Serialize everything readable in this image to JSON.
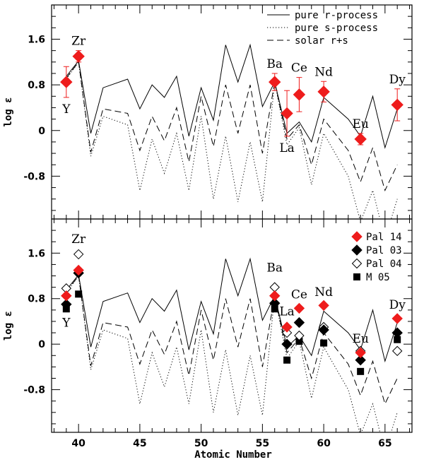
{
  "chart_data": [
    {
      "type": "line",
      "panel": "top",
      "xlabel": "",
      "ylabel": "log ε",
      "xlim": [
        37.8,
        67.2
      ],
      "ylim": [
        -1.55,
        2.2
      ],
      "x_ticks": [
        40,
        45,
        50,
        55,
        60,
        65
      ],
      "y_ticks": [
        -0.8,
        0,
        0.8,
        1.6
      ],
      "y_tick_labels": [
        "-0.8",
        "0",
        "0.8",
        "1.6"
      ],
      "legend": {
        "position": "top-right",
        "entries": [
          {
            "label": "pure r-process",
            "style": "solid"
          },
          {
            "label": "pure s-process",
            "style": "dotted"
          },
          {
            "label": "solar r+s",
            "style": "dashed"
          }
        ]
      },
      "curves": [
        {
          "name": "pure r-process",
          "style": "solid",
          "x": [
            39,
            40,
            41,
            42,
            44,
            45,
            46,
            47,
            48,
            49,
            50,
            51,
            52,
            53,
            54,
            55,
            56,
            57,
            58,
            59,
            60,
            62,
            63,
            64,
            65,
            66
          ],
          "y": [
            0.95,
            1.22,
            -0.05,
            0.75,
            0.9,
            0.38,
            0.8,
            0.58,
            0.95,
            -0.1,
            0.75,
            0.18,
            1.5,
            0.85,
            1.5,
            0.42,
            0.85,
            -0.05,
            0.15,
            -0.2,
            0.58,
            0.2,
            -0.1,
            0.6,
            -0.3,
            0.38
          ]
        },
        {
          "name": "pure s-process",
          "style": "dotted",
          "x": [
            39,
            40,
            41,
            42,
            44,
            45,
            46,
            47,
            48,
            49,
            50,
            51,
            52,
            53,
            54,
            55,
            56,
            57,
            58,
            59,
            60,
            62,
            63,
            64,
            65,
            66
          ],
          "y": [
            0.9,
            1.2,
            -0.45,
            0.25,
            0.1,
            -1.05,
            -0.15,
            -0.75,
            -0.05,
            -1.05,
            0.25,
            -1.2,
            -0.1,
            -1.25,
            -0.2,
            -1.25,
            0.85,
            -0.25,
            0.05,
            -0.95,
            -0.05,
            -0.8,
            -1.6,
            -1.05,
            -1.9,
            -1.2
          ]
        },
        {
          "name": "solar r+s",
          "style": "dashed",
          "x": [
            39,
            40,
            41,
            42,
            44,
            45,
            46,
            47,
            48,
            49,
            50,
            51,
            52,
            53,
            54,
            55,
            56,
            57,
            58,
            59,
            60,
            62,
            63,
            64,
            65,
            66
          ],
          "y": [
            0.92,
            1.2,
            -0.38,
            0.38,
            0.3,
            -0.35,
            0.25,
            -0.18,
            0.4,
            -0.55,
            0.6,
            -0.28,
            0.8,
            -0.05,
            0.8,
            -0.4,
            0.85,
            -0.15,
            0.1,
            -0.6,
            0.2,
            -0.35,
            -0.9,
            -0.3,
            -1.05,
            -0.6
          ]
        }
      ],
      "points": [
        {
          "element": "Y",
          "x": 39,
          "y": 0.85,
          "err": 0.27,
          "label_pos": "below"
        },
        {
          "element": "Zr",
          "x": 40,
          "y": 1.3,
          "err": 0.1,
          "label_pos": "above"
        },
        {
          "element": "Ba",
          "x": 56,
          "y": 0.85,
          "err": 0.15,
          "label_pos": "above"
        },
        {
          "element": "La",
          "x": 57,
          "y": 0.3,
          "err": 0.4,
          "label_pos": "below"
        },
        {
          "element": "Ce",
          "x": 58,
          "y": 0.63,
          "err": 0.3,
          "label_pos": "above"
        },
        {
          "element": "Nd",
          "x": 60,
          "y": 0.68,
          "err": 0.18,
          "label_pos": "above"
        },
        {
          "element": "Eu",
          "x": 63,
          "y": -0.15,
          "err": 0.1,
          "label_pos": "above"
        },
        {
          "element": "Dy",
          "x": 66,
          "y": 0.45,
          "err": 0.28,
          "label_pos": "above"
        }
      ],
      "point_series": "Pal 14",
      "point_color": "#ee1c1c"
    },
    {
      "type": "scatter",
      "panel": "bottom",
      "xlabel": "Atomic Number",
      "ylabel": "log ε",
      "xlim": [
        37.8,
        67.2
      ],
      "ylim": [
        -1.55,
        2.2
      ],
      "x_ticks": [
        40,
        45,
        50,
        55,
        60,
        65
      ],
      "y_ticks": [
        -0.8,
        0,
        0.8,
        1.6
      ],
      "y_tick_labels": [
        "-0.8",
        "0",
        "0.8",
        "1.6"
      ],
      "element_labels": [
        {
          "element": "Zr",
          "x": 40,
          "y": 1.85
        },
        {
          "element": "Y",
          "x": 39,
          "y": 0.38
        },
        {
          "element": "Ba",
          "x": 56,
          "y": 1.35
        },
        {
          "element": "La",
          "x": 57,
          "y": 0.58
        },
        {
          "element": "Ce",
          "x": 58,
          "y": 0.88
        },
        {
          "element": "Nd",
          "x": 60,
          "y": 0.92
        },
        {
          "element": "Eu",
          "x": 63,
          "y": 0.1
        },
        {
          "element": "Dy",
          "x": 66,
          "y": 0.7
        }
      ],
      "legend": {
        "position": "top-right",
        "entries": [
          {
            "label": "Pal 14",
            "marker": "filled-diamond",
            "color": "#ee1c1c"
          },
          {
            "label": "Pal 03",
            "marker": "filled-diamond",
            "color": "#000000"
          },
          {
            "label": "Pal 04",
            "marker": "open-diamond",
            "color": "#000000"
          },
          {
            "label": "M 05",
            "marker": "filled-square",
            "color": "#000000"
          }
        ]
      },
      "series": [
        {
          "name": "Pal 14",
          "marker": "filled-diamond",
          "color": "#ee1c1c",
          "x": [
            39,
            40,
            56,
            57,
            58,
            60,
            63,
            66
          ],
          "y": [
            0.85,
            1.3,
            0.85,
            0.3,
            0.63,
            0.68,
            -0.15,
            0.45
          ]
        },
        {
          "name": "Pal 03",
          "marker": "filled-diamond",
          "color": "#000000",
          "x": [
            39,
            40,
            56,
            57,
            58,
            60,
            63,
            66
          ],
          "y": [
            0.7,
            1.25,
            0.72,
            0.0,
            0.38,
            0.25,
            -0.28,
            0.2
          ]
        },
        {
          "name": "Pal 04",
          "marker": "open-diamond",
          "color": "#000000",
          "x": [
            39,
            40,
            56,
            57,
            58,
            60,
            63,
            66
          ],
          "y": [
            0.98,
            1.58,
            1.0,
            0.2,
            0.15,
            0.3,
            -0.12,
            -0.12
          ]
        },
        {
          "name": "M 05",
          "marker": "filled-square",
          "color": "#000000",
          "x": [
            39,
            40,
            56,
            57,
            58,
            60,
            63,
            66
          ],
          "y": [
            0.62,
            0.88,
            0.62,
            -0.28,
            0.05,
            0.02,
            -0.48,
            0.08
          ]
        }
      ]
    }
  ]
}
